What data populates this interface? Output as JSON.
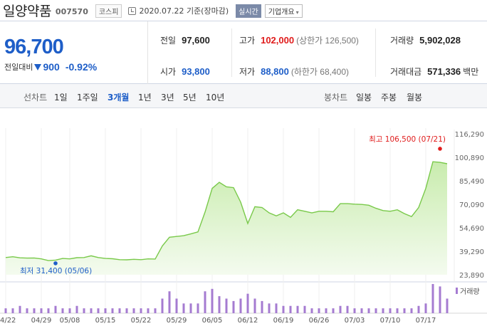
{
  "header": {
    "name": "일양약품",
    "code": "007570",
    "market": "코스피",
    "date": "2020.07.22 기준(장마감)",
    "realtime": "실시간",
    "overview": "기업개요",
    "overview_caret": "▾"
  },
  "quote": {
    "price": "96,700",
    "change_label": "전일대비",
    "change": "900",
    "change_rate": "-0.92%",
    "prev_label": "전일",
    "prev": "97,600",
    "high_label": "고가",
    "high": "102,000",
    "upper_limit": "(상한가 126,500)",
    "volume_label": "거래량",
    "volume": "5,902,028",
    "open_label": "시가",
    "open": "93,800",
    "low_label": "저가",
    "low": "88,800",
    "lower_limit": "(하한가 68,400)",
    "amount_label": "거래대금",
    "amount": "571,336",
    "amount_unit": "백만"
  },
  "period_bar": {
    "line_label": "선차트",
    "line_tabs": [
      "1일",
      "1주일",
      "3개월",
      "1년",
      "3년",
      "5년",
      "10년"
    ],
    "active": "3개월",
    "candle_label": "봉차트",
    "candle_tabs": [
      "일봉",
      "주봉",
      "월봉"
    ]
  },
  "colors": {
    "up": "#e01c1c",
    "down": "#1e5ec8",
    "line": "#79c94a",
    "area_top": "#c9ecae",
    "area_bottom": "#f4fbef",
    "volume_bar": "#a57bd1"
  },
  "chart_data": {
    "type": "area",
    "y_ticks": [
      "116,290",
      "100,890",
      "85,490",
      "70,090",
      "54,690",
      "39,290",
      "23,890"
    ],
    "ylim": [
      23890,
      116290
    ],
    "x_ticks": [
      "04/22",
      "04/29",
      "05/08",
      "05/15",
      "05/22",
      "05/29",
      "06/05",
      "06/12",
      "06/19",
      "06/26",
      "07/03",
      "07/10",
      "07/17"
    ],
    "max_label": "최고 106,500 (07/21)",
    "min_label": "최저 31,400 (05/06)",
    "volume_legend": "거래량",
    "series": [
      {
        "date": "04/22",
        "close": 35200,
        "volume": 2
      },
      {
        "date": "04/23",
        "close": 35700,
        "volume": 2
      },
      {
        "date": "04/24",
        "close": 35000,
        "volume": 3
      },
      {
        "date": "04/27",
        "close": 34800,
        "volume": 2
      },
      {
        "date": "04/28",
        "close": 34900,
        "volume": 2
      },
      {
        "date": "04/29",
        "close": 34300,
        "volume": 2
      },
      {
        "date": "05/04",
        "close": 33200,
        "volume": 2
      },
      {
        "date": "05/06",
        "close": 33500,
        "volume": 3
      },
      {
        "date": "05/07",
        "close": 34600,
        "volume": 2
      },
      {
        "date": "05/08",
        "close": 34300,
        "volume": 2
      },
      {
        "date": "05/11",
        "close": 35100,
        "volume": 3
      },
      {
        "date": "05/12",
        "close": 35200,
        "volume": 2
      },
      {
        "date": "05/13",
        "close": 36300,
        "volume": 2
      },
      {
        "date": "05/14",
        "close": 35200,
        "volume": 2
      },
      {
        "date": "05/15",
        "close": 34600,
        "volume": 2
      },
      {
        "date": "05/18",
        "close": 34400,
        "volume": 2
      },
      {
        "date": "05/19",
        "close": 33800,
        "volume": 2
      },
      {
        "date": "05/20",
        "close": 33700,
        "volume": 2
      },
      {
        "date": "05/21",
        "close": 34000,
        "volume": 2
      },
      {
        "date": "05/22",
        "close": 33800,
        "volume": 2
      },
      {
        "date": "05/25",
        "close": 34300,
        "volume": 2
      },
      {
        "date": "05/26",
        "close": 34200,
        "volume": 2
      },
      {
        "date": "05/27",
        "close": 42800,
        "volume": 6
      },
      {
        "date": "05/28",
        "close": 48500,
        "volume": 9
      },
      {
        "date": "05/29",
        "close": 49000,
        "volume": 6
      },
      {
        "date": "06/01",
        "close": 49500,
        "volume": 4
      },
      {
        "date": "06/02",
        "close": 50700,
        "volume": 4
      },
      {
        "date": "06/03",
        "close": 52000,
        "volume": 4
      },
      {
        "date": "06/04",
        "close": 65000,
        "volume": 9
      },
      {
        "date": "06/05",
        "close": 80500,
        "volume": 10
      },
      {
        "date": "06/08",
        "close": 84500,
        "volume": 7
      },
      {
        "date": "06/09",
        "close": 81500,
        "volume": 6
      },
      {
        "date": "06/10",
        "close": 81000,
        "volume": 5
      },
      {
        "date": "06/11",
        "close": 71500,
        "volume": 6
      },
      {
        "date": "06/12",
        "close": 57500,
        "volume": 8
      },
      {
        "date": "06/15",
        "close": 68500,
        "volume": 6
      },
      {
        "date": "06/16",
        "close": 68000,
        "volume": 5
      },
      {
        "date": "06/17",
        "close": 64500,
        "volume": 4
      },
      {
        "date": "06/18",
        "close": 62500,
        "volume": 4
      },
      {
        "date": "06/19",
        "close": 64500,
        "volume": 3
      },
      {
        "date": "06/22",
        "close": 61500,
        "volume": 3
      },
      {
        "date": "06/23",
        "close": 66500,
        "volume": 3
      },
      {
        "date": "06/24",
        "close": 65500,
        "volume": 3
      },
      {
        "date": "06/25",
        "close": 64500,
        "volume": 2
      },
      {
        "date": "06/26",
        "close": 65500,
        "volume": 2
      },
      {
        "date": "06/29",
        "close": 65500,
        "volume": 2
      },
      {
        "date": "06/30",
        "close": 65200,
        "volume": 2
      },
      {
        "date": "07/01",
        "close": 70500,
        "volume": 3
      },
      {
        "date": "07/02",
        "close": 70500,
        "volume": 3
      },
      {
        "date": "07/03",
        "close": 70200,
        "volume": 2
      },
      {
        "date": "07/06",
        "close": 70000,
        "volume": 2
      },
      {
        "date": "07/07",
        "close": 69500,
        "volume": 2
      },
      {
        "date": "07/08",
        "close": 67500,
        "volume": 2
      },
      {
        "date": "07/09",
        "close": 66000,
        "volume": 2
      },
      {
        "date": "07/10",
        "close": 65500,
        "volume": 2
      },
      {
        "date": "07/13",
        "close": 66500,
        "volume": 2
      },
      {
        "date": "07/14",
        "close": 64000,
        "volume": 2
      },
      {
        "date": "07/15",
        "close": 62000,
        "volume": 2
      },
      {
        "date": "07/16",
        "close": 68000,
        "volume": 3
      },
      {
        "date": "07/17",
        "close": 80500,
        "volume": 4
      },
      {
        "date": "07/20",
        "close": 98000,
        "volume": 12
      },
      {
        "date": "07/21",
        "close": 97600,
        "volume": 11
      },
      {
        "date": "07/22",
        "close": 96700,
        "volume": 6
      }
    ],
    "high_point": {
      "date": "07/21",
      "value": 106500
    },
    "low_point": {
      "date": "05/06",
      "value": 31400
    }
  }
}
